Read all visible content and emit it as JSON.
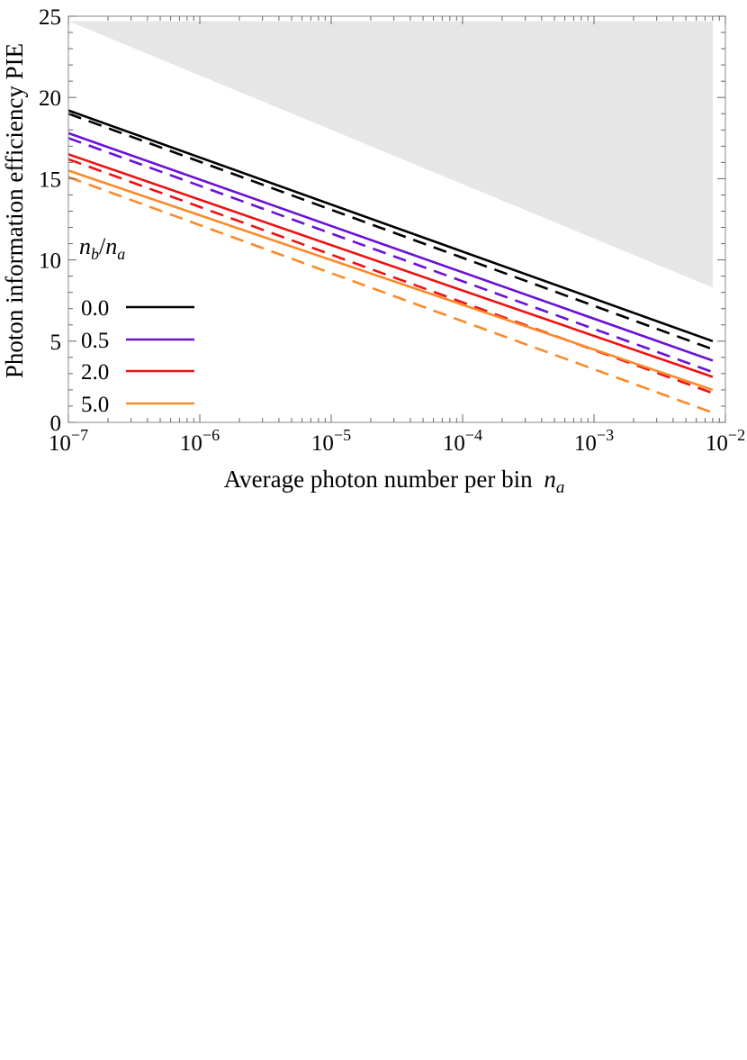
{
  "chart_data": {
    "type": "line",
    "title": "",
    "xlabel": "Average photon number per bin",
    "xlabel_symbol": "n",
    "xlabel_symbol_sub": "a",
    "ylabel": "Photon information efficiency PIE",
    "xscale": "log10",
    "xlim": [
      1e-07,
      0.01
    ],
    "ylim": [
      0,
      25
    ],
    "x_ticks": [
      {
        "base": "10",
        "exp": "−7"
      },
      {
        "base": "10",
        "exp": "−6"
      },
      {
        "base": "10",
        "exp": "−5"
      },
      {
        "base": "10",
        "exp": "−4"
      },
      {
        "base": "10",
        "exp": "−3"
      },
      {
        "base": "10",
        "exp": "−2"
      }
    ],
    "y_ticks": [
      "0",
      "5",
      "10",
      "15",
      "20",
      "25"
    ],
    "shaded_region": {
      "description": "upper bound region",
      "color": "#e6e6e6",
      "points": [
        [
          1e-07,
          24.7
        ],
        [
          0.008,
          24.7
        ],
        [
          0.008,
          8.3
        ]
      ]
    },
    "legend": {
      "title_parts": [
        "n",
        "b",
        "/",
        "n",
        "a"
      ],
      "position": "left-middle",
      "entries": [
        "0.0",
        "0.5",
        "2.0",
        "5.0"
      ]
    },
    "series": [
      {
        "name": "0.0",
        "style": "solid",
        "color": "#000000",
        "x": [
          1e-07,
          0.008
        ],
        "values": [
          19.2,
          5.0
        ]
      },
      {
        "name": "0.0",
        "style": "dashed",
        "color": "#000000",
        "x": [
          1e-07,
          0.008
        ],
        "values": [
          19.0,
          4.5
        ]
      },
      {
        "name": "0.5",
        "style": "solid",
        "color": "#6a11d6",
        "x": [
          1e-07,
          0.008
        ],
        "values": [
          17.8,
          3.8
        ]
      },
      {
        "name": "0.5",
        "style": "dashed",
        "color": "#6a11d6",
        "x": [
          1e-07,
          0.008
        ],
        "values": [
          17.5,
          3.1
        ]
      },
      {
        "name": "2.0",
        "style": "solid",
        "color": "#ee1111",
        "x": [
          1e-07,
          0.008
        ],
        "values": [
          16.5,
          2.8
        ]
      },
      {
        "name": "2.0",
        "style": "dashed",
        "color": "#ee1111",
        "x": [
          1e-07,
          0.008
        ],
        "values": [
          16.2,
          1.8
        ]
      },
      {
        "name": "5.0",
        "style": "solid",
        "color": "#fa8a2a",
        "x": [
          1e-07,
          0.008
        ],
        "values": [
          15.5,
          2.0
        ]
      },
      {
        "name": "5.0",
        "style": "dashed",
        "color": "#fa8a2a",
        "x": [
          1e-07,
          0.008
        ],
        "values": [
          15.1,
          0.6
        ]
      }
    ]
  }
}
